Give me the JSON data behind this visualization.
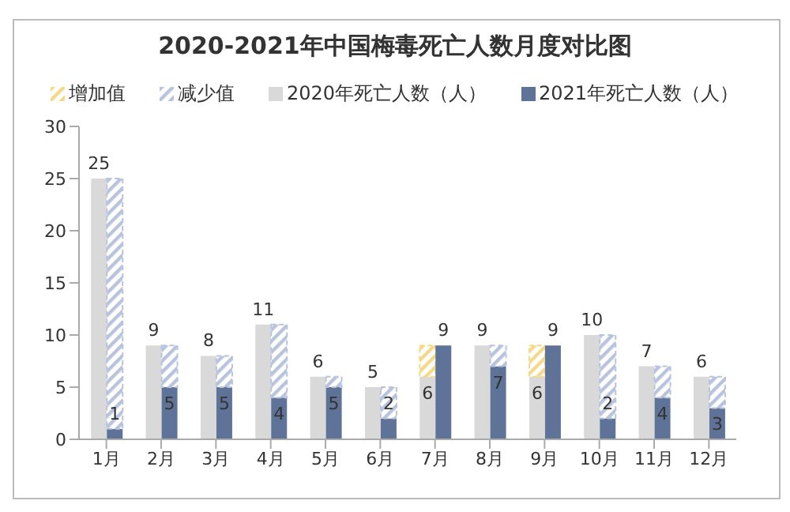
{
  "chart_data": {
    "type": "bar",
    "title": "2020-2021年中国梅毒死亡人数月度对比图",
    "categories": [
      "1月",
      "2月",
      "3月",
      "4月",
      "5月",
      "6月",
      "7月",
      "8月",
      "9月",
      "10月",
      "11月",
      "12月"
    ],
    "series": [
      {
        "name": "增加值",
        "color": "#f5d98b",
        "base": [
          null,
          null,
          null,
          null,
          null,
          null,
          6,
          null,
          6,
          null,
          null,
          null
        ],
        "values": [
          null,
          null,
          null,
          null,
          null,
          null,
          3,
          null,
          3,
          null,
          null,
          null
        ]
      },
      {
        "name": "减少值",
        "color": "#b8c4de",
        "base": [
          1,
          5,
          5,
          4,
          5,
          2,
          null,
          7,
          null,
          2,
          4,
          3
        ],
        "values": [
          24,
          4,
          3,
          7,
          1,
          3,
          null,
          2,
          null,
          8,
          3,
          3
        ]
      },
      {
        "name": "2020年死亡人数（人）",
        "color": "#d9d9d9",
        "values": [
          25,
          9,
          8,
          11,
          6,
          5,
          6,
          9,
          6,
          10,
          7,
          6
        ],
        "value_labels": [
          "25",
          "9",
          "8",
          "11",
          "6",
          "5",
          "6",
          "9",
          "6",
          "10",
          "7",
          "6"
        ]
      },
      {
        "name": "2021年死亡人数（人）",
        "color": "#5f7399",
        "values": [
          1,
          5,
          5,
          4,
          5,
          2,
          9,
          7,
          9,
          2,
          4,
          3
        ],
        "value_labels": [
          "1",
          "5",
          "5",
          "4",
          "5",
          "2",
          "9",
          "7",
          "9",
          "2",
          "4",
          "3"
        ]
      }
    ],
    "ylim": [
      0,
      30
    ],
    "yticks": [
      0,
      5,
      10,
      15,
      20,
      25,
      30
    ],
    "grid": false,
    "legend": "top"
  }
}
